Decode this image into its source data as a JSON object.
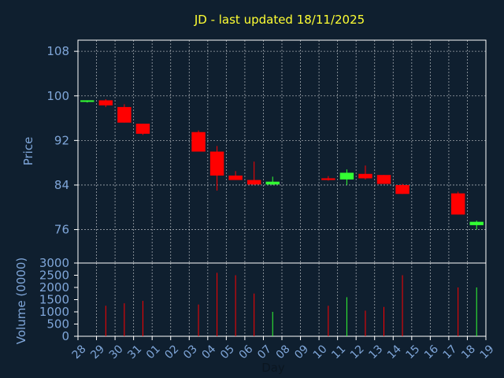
{
  "colors": {
    "background": "#0f1f2f",
    "up": "#33ff33",
    "down": "#ff0000",
    "grid": "#ffffff",
    "text": "#7fa6d9",
    "title": "#ffff33"
  },
  "chart_data": {
    "type": "candlestick",
    "title": "JD - last updated 18/11/2025",
    "xlabel": "Day",
    "ylabel": "Price",
    "volume_label": "Volume (0000)",
    "grid": true,
    "price_ylim": [
      70,
      110
    ],
    "price_ticks": [
      108,
      100,
      92,
      84,
      76
    ],
    "volume_ylim": [
      0,
      3000
    ],
    "volume_ticks": [
      3000,
      2500,
      2000,
      1500,
      1000,
      500,
      0
    ],
    "x_tick_labels": [
      "28",
      "29",
      "30",
      "31",
      "01",
      "02",
      "03",
      "04",
      "05",
      "06",
      "07",
      "08",
      "09",
      "10",
      "11",
      "12",
      "13",
      "14",
      "15",
      "16",
      "17",
      "18",
      "19"
    ],
    "candles": [
      {
        "day": "28",
        "open": 99.0,
        "high": 99.2,
        "low": 98.8,
        "close": 99.2,
        "volume": 0
      },
      {
        "day": "29",
        "open": 99.2,
        "high": 99.4,
        "low": 98.0,
        "close": 98.3,
        "volume": 1250
      },
      {
        "day": "30",
        "open": 98.0,
        "high": 98.5,
        "low": 95.2,
        "close": 95.2,
        "volume": 1350
      },
      {
        "day": "31",
        "open": 95.0,
        "high": 95.0,
        "low": 93.0,
        "close": 93.2,
        "volume": 1450
      },
      {
        "day": "03",
        "open": 93.5,
        "high": 93.8,
        "low": 90.0,
        "close": 90.0,
        "volume": 1300
      },
      {
        "day": "04",
        "open": 90.0,
        "high": 91.0,
        "low": 83.0,
        "close": 85.7,
        "volume": 2600
      },
      {
        "day": "05",
        "open": 85.7,
        "high": 86.5,
        "low": 84.9,
        "close": 84.9,
        "volume": 2500
      },
      {
        "day": "06",
        "open": 84.9,
        "high": 88.2,
        "low": 84.0,
        "close": 84.1,
        "volume": 1750
      },
      {
        "day": "07",
        "open": 84.1,
        "high": 85.5,
        "low": 84.0,
        "close": 84.6,
        "volume": 1000
      },
      {
        "day": "10",
        "open": 85.2,
        "high": 85.6,
        "low": 84.8,
        "close": 84.9,
        "volume": 1250
      },
      {
        "day": "11",
        "open": 85.0,
        "high": 86.8,
        "low": 84.0,
        "close": 86.2,
        "volume": 1600
      },
      {
        "day": "12",
        "open": 86.0,
        "high": 87.5,
        "low": 85.0,
        "close": 85.2,
        "volume": 1050
      },
      {
        "day": "13",
        "open": 85.8,
        "high": 85.8,
        "low": 84.2,
        "close": 84.2,
        "volume": 1200
      },
      {
        "day": "14",
        "open": 84.0,
        "high": 84.2,
        "low": 82.4,
        "close": 82.4,
        "volume": 2500
      },
      {
        "day": "17",
        "open": 82.5,
        "high": 82.8,
        "low": 78.7,
        "close": 78.7,
        "volume": 2000
      },
      {
        "day": "18",
        "open": 76.8,
        "high": 77.6,
        "low": 76.0,
        "close": 77.4,
        "volume": 2000
      }
    ]
  }
}
